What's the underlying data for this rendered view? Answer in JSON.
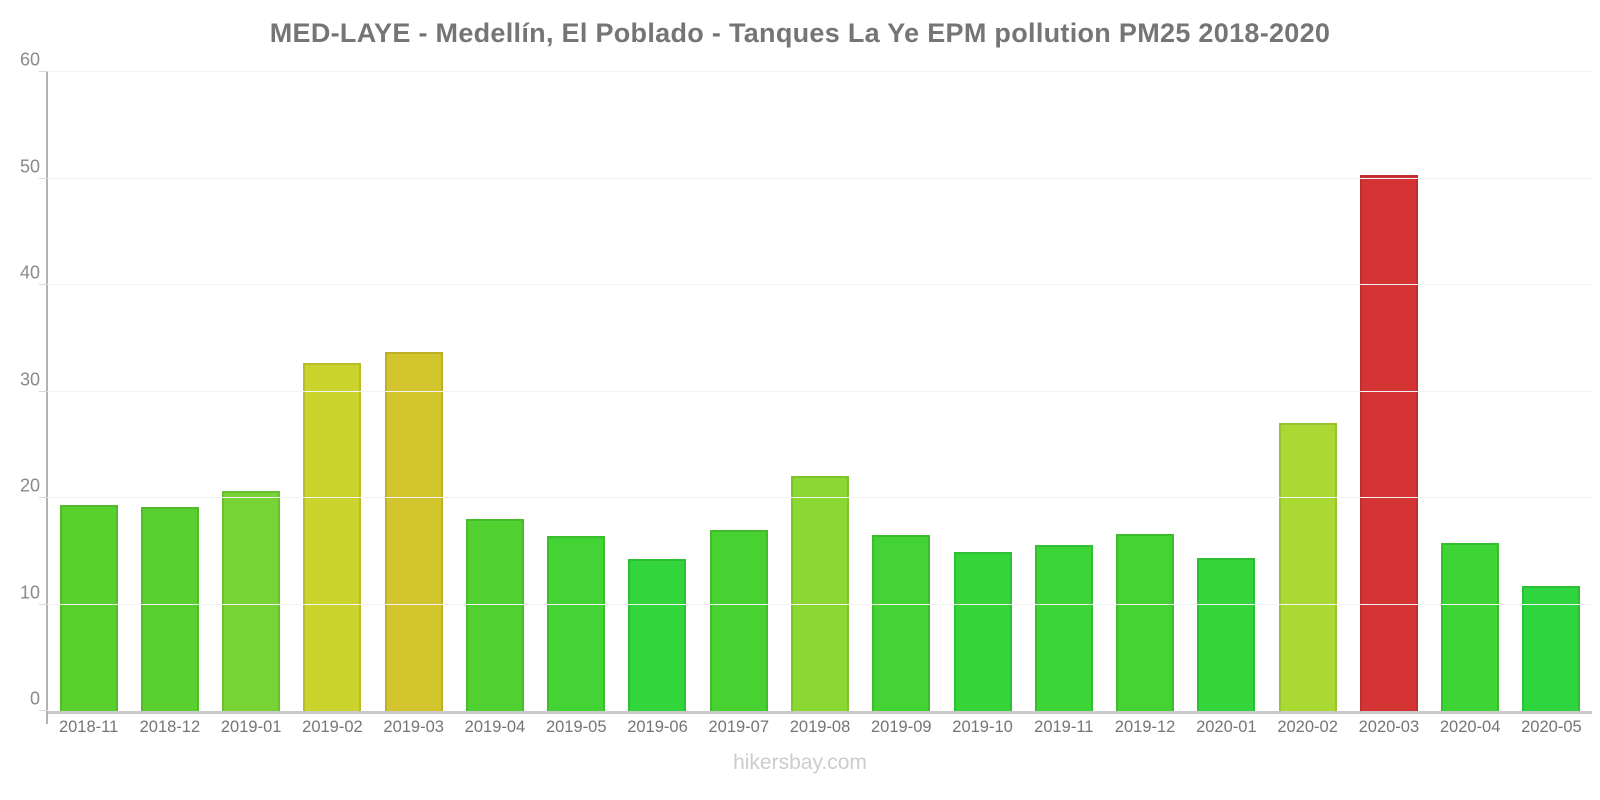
{
  "title": "MED-LAYE - Medellín, El Poblado - Tanques La Ye EPM pollution PM25 2018-2020",
  "footer": "hikersbay.com",
  "chart_data": {
    "type": "bar",
    "title": "MED-LAYE - Medellín, El Poblado - Tanques La Ye EPM pollution PM25 2018-2020",
    "xlabel": "",
    "ylabel": "",
    "ylim": [
      0,
      60
    ],
    "yticks": [
      0,
      10,
      20,
      30,
      40,
      50,
      60
    ],
    "grid": "horizontal-faint",
    "legend": "none",
    "categories": [
      "2018-11",
      "2018-12",
      "2019-01",
      "2019-02",
      "2019-03",
      "2019-04",
      "2019-05",
      "2019-06",
      "2019-07",
      "2019-08",
      "2019-09",
      "2019-10",
      "2019-11",
      "2019-12",
      "2020-01",
      "2020-02",
      "2020-03",
      "2020-04",
      "2020-05"
    ],
    "values": [
      19.3,
      19.2,
      20.7,
      32.7,
      33.7,
      18.0,
      16.4,
      14.3,
      17.0,
      22.1,
      16.5,
      14.9,
      15.6,
      16.6,
      14.4,
      27.0,
      50.3,
      15.8,
      11.7
    ],
    "bar_colors": [
      "#5ad02f",
      "#59d02f",
      "#78d434",
      "#cbd32d",
      "#d2c52e",
      "#50d131",
      "#43d334",
      "#32d53b",
      "#48d232",
      "#8bd833",
      "#44d334",
      "#35d53a",
      "#3cd437",
      "#45d334",
      "#33d53b",
      "#abd934",
      "#d53434",
      "#3ed436",
      "#2ed53e"
    ],
    "colors_meaning": {
      "green": "low PM25",
      "yellow": "moderate PM25",
      "red": "high PM25"
    },
    "axis_color": "#b3b3b3",
    "grid_color": "#f2f2f2",
    "tick_label_color": "#8a8a8a",
    "x_label_color": "#757575",
    "title_color": "#757575",
    "footer_color": "#cccccc"
  }
}
